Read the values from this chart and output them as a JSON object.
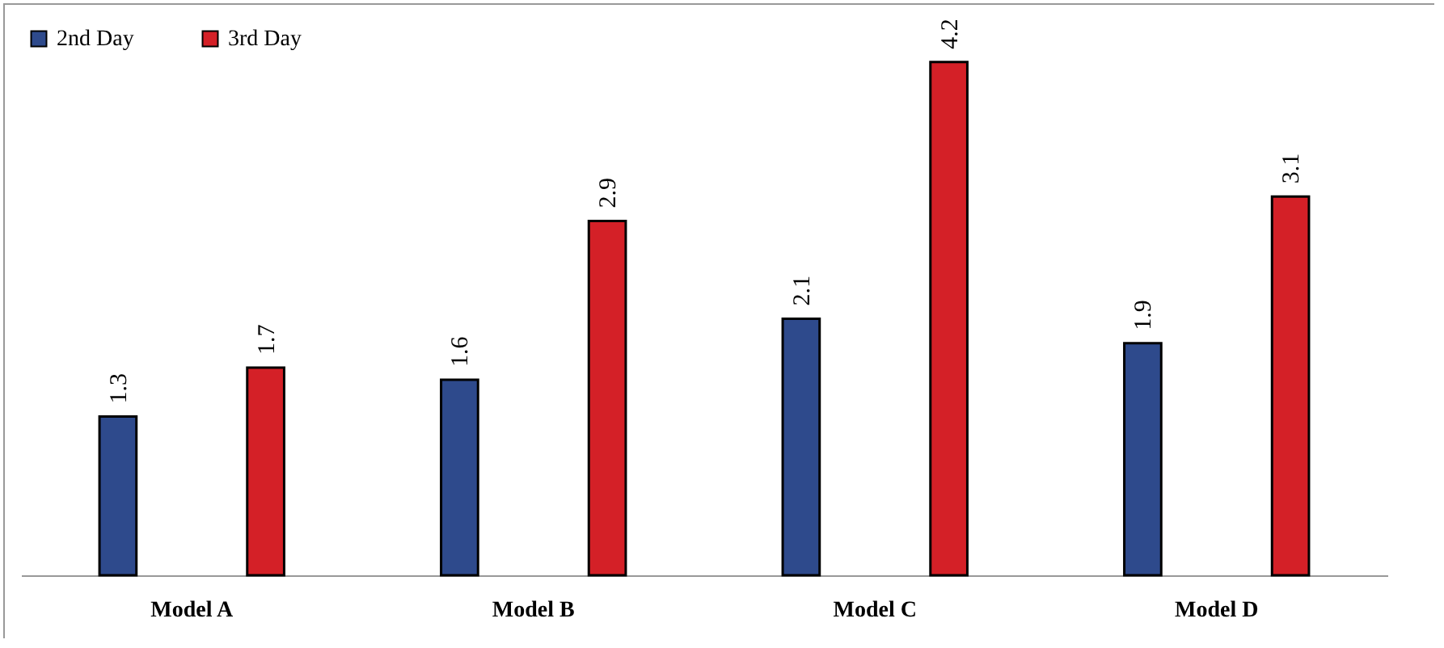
{
  "chart_data": {
    "type": "bar",
    "categories": [
      "Model A",
      "Model B",
      "Model C",
      "Model D"
    ],
    "series": [
      {
        "name": "2nd Day",
        "color": "#2e4a8c",
        "values": [
          1.3,
          1.6,
          2.1,
          1.9
        ]
      },
      {
        "name": "3rd Day",
        "color": "#d42027",
        "values": [
          1.7,
          2.9,
          4.2,
          3.1
        ]
      }
    ],
    "data_labels": true,
    "legend": "top left"
  }
}
